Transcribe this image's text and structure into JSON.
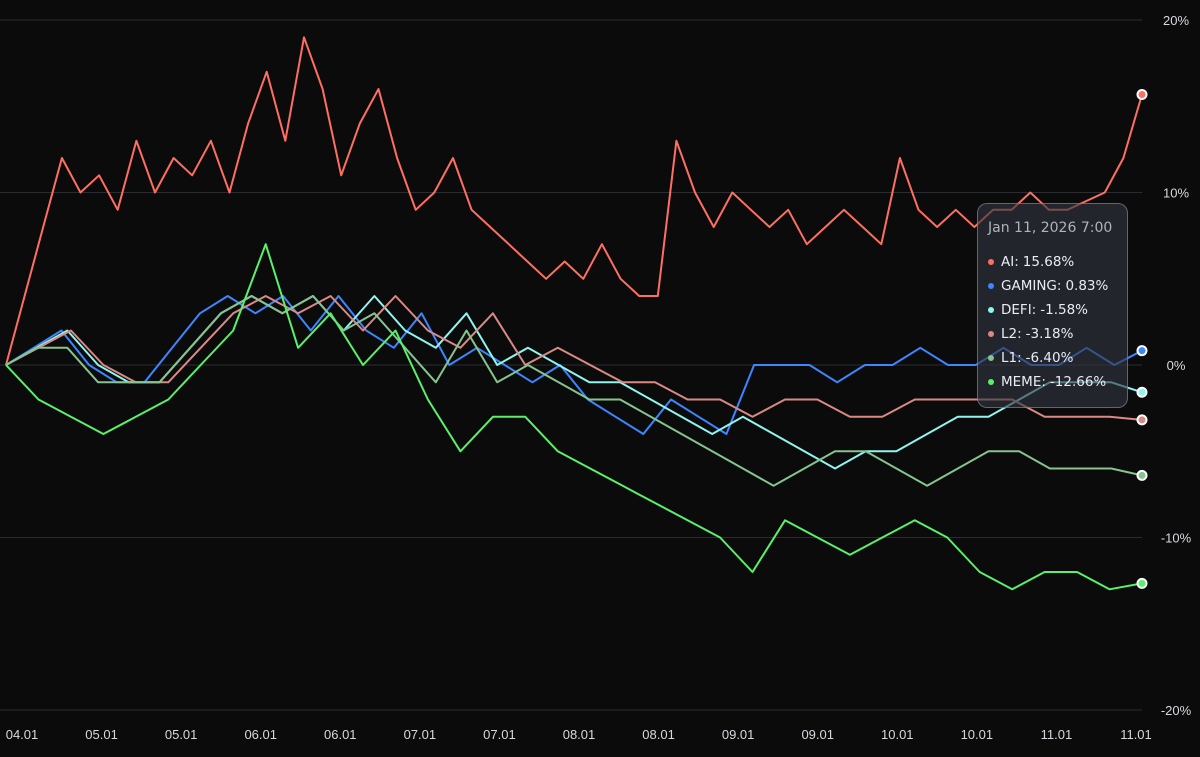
{
  "chart_data": {
    "type": "line",
    "title": "",
    "xlabel": "",
    "ylabel": "",
    "ylim": [
      -20,
      20
    ],
    "y_ticks": [
      "20%",
      "10%",
      "0%",
      "-10%",
      "-20%"
    ],
    "y_tick_values": [
      20,
      10,
      0,
      -10,
      -20
    ],
    "x_ticks": [
      "04.01",
      "05.01",
      "05.01",
      "06.01",
      "06.01",
      "07.01",
      "07.01",
      "08.01",
      "08.01",
      "09.01",
      "09.01",
      "10.01",
      "10.01",
      "11.01",
      "11.01"
    ],
    "grid": true,
    "legend": "tooltip",
    "tooltip": {
      "title": "Jan 11, 2026 7:00",
      "rows": [
        {
          "label": "AI:",
          "value": "15.68%",
          "color": "#ff6f61"
        },
        {
          "label": "GAMING:",
          "value": "0.83%",
          "color": "#3d86ff"
        },
        {
          "label": "DEFI:",
          "value": "-1.58%",
          "color": "#8ff5ee"
        },
        {
          "label": "L2:",
          "value": "-3.18%",
          "color": "#d98a85"
        },
        {
          "label": "L1:",
          "value": "-6.40%",
          "color": "#86c48e"
        },
        {
          "label": "MEME:",
          "value": "-12.66%",
          "color": "#5af06a"
        }
      ]
    },
    "series": [
      {
        "name": "AI",
        "color": "#ff6f61",
        "values": [
          0,
          4,
          8,
          12,
          10,
          11,
          9,
          13,
          10,
          12,
          11,
          13,
          10,
          14,
          17,
          13,
          19,
          16,
          11,
          14,
          16,
          12,
          9,
          10,
          12,
          9,
          8,
          7,
          6,
          5,
          6,
          5,
          7,
          5,
          4,
          4,
          13,
          10,
          8,
          10,
          9,
          8,
          9,
          7,
          8,
          9,
          8,
          7,
          12,
          9,
          8,
          9,
          8,
          9,
          9,
          10,
          9,
          9,
          9.5,
          10,
          12,
          15.68
        ]
      },
      {
        "name": "GAMING",
        "color": "#3d86ff",
        "values": [
          0,
          1,
          2,
          0,
          -1,
          -1,
          1,
          3,
          4,
          3,
          4,
          2,
          4,
          2,
          1,
          3,
          0,
          1,
          0,
          -1,
          0,
          -2,
          -3,
          -4,
          -2,
          -3,
          -4,
          0,
          0,
          0,
          -1,
          0,
          0,
          1,
          0,
          0,
          1,
          0,
          0,
          1,
          0,
          0.83
        ]
      },
      {
        "name": "DEFI",
        "color": "#8ff5ee",
        "values": [
          0,
          1,
          2,
          0,
          -1,
          -1,
          1,
          3,
          4,
          3,
          4,
          2,
          4,
          2,
          1,
          3,
          0,
          1,
          0,
          -1,
          -1,
          -2,
          -3,
          -4,
          -3,
          -4,
          -5,
          -6,
          -5,
          -5,
          -4,
          -3,
          -3,
          -2,
          -1,
          -1,
          -1,
          -1.58
        ]
      },
      {
        "name": "L2",
        "color": "#d98a85",
        "values": [
          0,
          1,
          2,
          0,
          -1,
          -1,
          1,
          3,
          4,
          3,
          4,
          2,
          4,
          2,
          1,
          3,
          0,
          1,
          0,
          -1,
          -1,
          -2,
          -2,
          -3,
          -2,
          -2,
          -3,
          -3,
          -2,
          -2,
          -2,
          -2,
          -3,
          -3,
          -3,
          -3.18
        ]
      },
      {
        "name": "L1",
        "color": "#86c48e",
        "values": [
          0,
          1,
          1,
          -1,
          -1,
          -1,
          1,
          3,
          4,
          3,
          4,
          2,
          3,
          1,
          -1,
          2,
          -1,
          0,
          -1,
          -2,
          -2,
          -3,
          -4,
          -5,
          -6,
          -7,
          -6,
          -5,
          -5,
          -6,
          -7,
          -6,
          -5,
          -5,
          -6,
          -6,
          -6,
          -6.4
        ]
      },
      {
        "name": "MEME",
        "color": "#5af06a",
        "values": [
          0,
          -2,
          -3,
          -4,
          -3,
          -2,
          0,
          2,
          7,
          1,
          3,
          0,
          2,
          -2,
          -5,
          -3,
          -3,
          -5,
          -6,
          -7,
          -8,
          -9,
          -10,
          -12,
          -9,
          -10,
          -11,
          -10,
          -9,
          -10,
          -12,
          -13,
          -12,
          -12,
          -13,
          -12.66
        ]
      }
    ]
  }
}
